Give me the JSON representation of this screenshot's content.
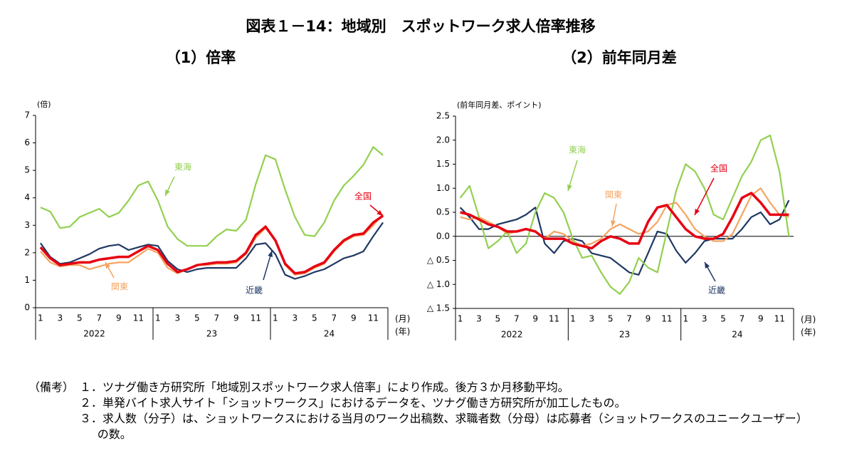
{
  "title": "図表１－14：地域別　スポットワーク求人倍率推移",
  "chart_data": [
    {
      "type": "line",
      "title": "（1）倍率",
      "y_unit": "(倍)",
      "x_unit": "(月)",
      "x_group_unit": "(年)",
      "categories": [
        "1",
        null,
        "3",
        null,
        "5",
        null,
        "7",
        null,
        "9",
        null,
        "11",
        null,
        "1",
        null,
        "3",
        null,
        "5",
        null,
        "7",
        null,
        "9",
        null,
        "11",
        null,
        "1",
        null,
        "3",
        null,
        "5",
        null,
        "7",
        null,
        "9",
        null,
        "11",
        null
      ],
      "year_labels": [
        "2022",
        "23",
        "24"
      ],
      "ylim": [
        0,
        7
      ],
      "yticks": [
        0,
        1,
        2,
        3,
        4,
        5,
        6,
        7
      ],
      "series": [
        {
          "name": "全国",
          "color": "#e60012",
          "values": [
            2.2,
            1.8,
            1.55,
            1.6,
            1.65,
            1.65,
            1.75,
            1.8,
            1.85,
            1.85,
            2.05,
            2.25,
            2.1,
            1.6,
            1.3,
            1.4,
            1.55,
            1.6,
            1.65,
            1.65,
            1.7,
            2.0,
            2.65,
            2.95,
            2.45,
            1.6,
            1.25,
            1.3,
            1.5,
            1.65,
            2.1,
            2.45,
            2.65,
            2.7,
            3.1,
            3.35
          ]
        },
        {
          "name": "東海",
          "color": "#92d050",
          "values": [
            3.65,
            3.5,
            2.9,
            2.95,
            3.3,
            3.45,
            3.6,
            3.3,
            3.45,
            3.9,
            4.45,
            4.6,
            3.9,
            2.95,
            2.5,
            2.25,
            2.25,
            2.25,
            2.6,
            2.85,
            2.8,
            3.2,
            4.5,
            5.55,
            5.4,
            4.3,
            3.3,
            2.65,
            2.6,
            3.1,
            3.9,
            4.45,
            4.8,
            5.2,
            5.85,
            5.55
          ]
        },
        {
          "name": "関東",
          "color": "#f4a460",
          "values": [
            2.05,
            1.65,
            1.5,
            1.55,
            1.55,
            1.4,
            1.5,
            1.6,
            1.65,
            1.65,
            1.9,
            2.15,
            2.0,
            1.45,
            1.25,
            1.4,
            1.55,
            1.55,
            1.6,
            1.6,
            1.65,
            1.95,
            2.55,
            2.9,
            2.45,
            1.55,
            1.2,
            1.25,
            1.45,
            1.6,
            2.05,
            2.4,
            2.6,
            2.65,
            3.0,
            3.4
          ]
        },
        {
          "name": "近畿",
          "color": "#1f3864",
          "values": [
            2.35,
            1.85,
            1.6,
            1.65,
            1.8,
            1.95,
            2.15,
            2.25,
            2.3,
            2.1,
            2.2,
            2.3,
            2.25,
            1.7,
            1.4,
            1.3,
            1.4,
            1.45,
            1.45,
            1.45,
            1.45,
            1.8,
            2.3,
            2.35,
            1.95,
            1.2,
            1.05,
            1.15,
            1.3,
            1.4,
            1.6,
            1.8,
            1.9,
            2.05,
            2.6,
            3.1
          ]
        }
      ]
    },
    {
      "type": "line",
      "title": "（2）前年同月差",
      "y_unit": "(前年同月差、ポイント)",
      "x_unit": "(月)",
      "x_group_unit": "(年)",
      "categories": [
        "1",
        null,
        "3",
        null,
        "5",
        null,
        "7",
        null,
        "9",
        null,
        "11",
        null,
        "1",
        null,
        "3",
        null,
        "5",
        null,
        "7",
        null,
        "9",
        null,
        "11",
        null,
        "1",
        null,
        "3",
        null,
        "5",
        null,
        "7",
        null,
        "9",
        null,
        "11",
        null
      ],
      "year_labels": [
        "2022",
        "23",
        "24"
      ],
      "ylim": [
        -1.5,
        2.5
      ],
      "yticks": [
        {
          "value": -1.5,
          "label": "△ 1.5"
        },
        {
          "value": -1.0,
          "label": "△ 1.0"
        },
        {
          "value": -0.5,
          "label": "△ 0.5"
        },
        {
          "value": 0,
          "label": "0.0"
        },
        0.5,
        {
          "value": 1.0,
          "label": "1.0"
        },
        1.5,
        {
          "value": 2.0,
          "label": "2.0"
        },
        2.5
      ],
      "series": [
        {
          "name": "全国",
          "color": "#e60012",
          "values": [
            0.5,
            0.45,
            0.35,
            0.25,
            0.2,
            0.1,
            0.1,
            0.15,
            0.1,
            -0.05,
            -0.05,
            -0.05,
            -0.15,
            -0.2,
            -0.25,
            -0.1,
            0,
            -0.05,
            -0.15,
            -0.15,
            0.3,
            0.6,
            0.65,
            0.4,
            0.15,
            0,
            -0.05,
            -0.05,
            0.05,
            0.4,
            0.8,
            0.9,
            0.7,
            0.45,
            0.45,
            0.45
          ]
        },
        {
          "name": "東海",
          "color": "#92d050",
          "values": [
            0.8,
            1.05,
            0.4,
            -0.25,
            -0.1,
            0.1,
            -0.35,
            -0.15,
            0.5,
            0.9,
            0.8,
            0.5,
            -0.05,
            -0.45,
            -0.4,
            -0.75,
            -1.05,
            -1.2,
            -0.95,
            -0.45,
            -0.65,
            -0.75,
            0.1,
            0.95,
            1.5,
            1.35,
            1.0,
            0.45,
            0.35,
            0.8,
            1.25,
            1.55,
            2.0,
            2.1,
            1.35,
            0.0
          ]
        },
        {
          "name": "関東",
          "color": "#f4a460",
          "values": [
            0.4,
            0.35,
            0.4,
            0.3,
            0.2,
            0.05,
            0.1,
            0.15,
            0.1,
            -0.05,
            0.1,
            0.05,
            -0.1,
            -0.2,
            -0.15,
            -0.05,
            0.15,
            0.25,
            0.15,
            0.05,
            0.1,
            0.3,
            0.65,
            0.7,
            0.45,
            0.15,
            0,
            -0.1,
            -0.1,
            0.05,
            0.45,
            0.85,
            1.0,
            0.7,
            0.45,
            0.4
          ]
        },
        {
          "name": "近畿",
          "color": "#1f3864",
          "values": [
            0.6,
            0.4,
            0.15,
            0.15,
            0.25,
            0.3,
            0.35,
            0.45,
            0.6,
            -0.15,
            -0.35,
            -0.1,
            -0.05,
            -0.1,
            -0.35,
            -0.4,
            -0.45,
            -0.6,
            -0.75,
            -0.8,
            -0.35,
            0.1,
            0.05,
            -0.3,
            -0.55,
            -0.35,
            -0.1,
            -0.05,
            -0.05,
            -0.05,
            0.15,
            0.4,
            0.5,
            0.25,
            0.35,
            0.75
          ]
        }
      ]
    }
  ],
  "notes_label": "（備考）",
  "notes": [
    "１．ツナグ働き方研究所「地域別スポットワーク求人倍率」により作成。後方３か月移動平均。",
    "２．単発バイト求人サイト「ショットワークス」におけるデータを、ツナグ働き方研究所が加工したもの。",
    "３．求人数（分子）は、ショットワークスにおける当月のワーク出稿数、求職者数（分母）は応募者（ショットワークスのユニークユーザー）の数。"
  ]
}
